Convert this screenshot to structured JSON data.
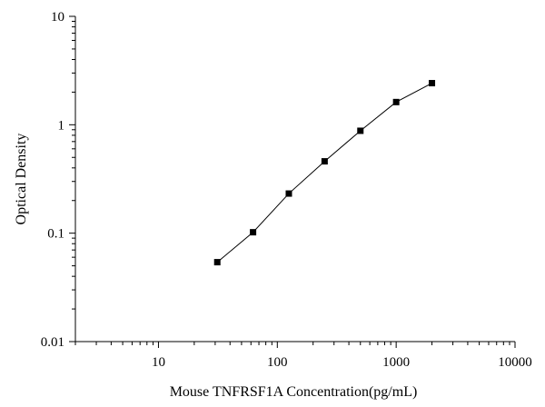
{
  "chart_data": {
    "type": "line",
    "title": "",
    "xlabel": "Mouse TNFRSF1A Concentration(pg/mL)",
    "ylabel": "Optical Density",
    "xscale": "log",
    "yscale": "log",
    "xlim": [
      2,
      10000
    ],
    "ylim": [
      0.01,
      10
    ],
    "xticks": [
      10,
      100,
      1000,
      10000
    ],
    "xtick_labels": [
      "10",
      "100",
      "1000",
      "10000"
    ],
    "yticks": [
      0.01,
      0.1,
      1,
      10
    ],
    "ytick_labels": [
      "0.01",
      "0.1",
      "1",
      "10"
    ],
    "grid": false,
    "legend": "none",
    "line_color": "#000000",
    "marker": "square",
    "series": [
      {
        "x": [
          31.25,
          62.5,
          125,
          250,
          500,
          1000,
          2000
        ],
        "y": [
          0.054,
          0.102,
          0.232,
          0.46,
          0.88,
          1.62,
          2.42
        ]
      }
    ]
  }
}
